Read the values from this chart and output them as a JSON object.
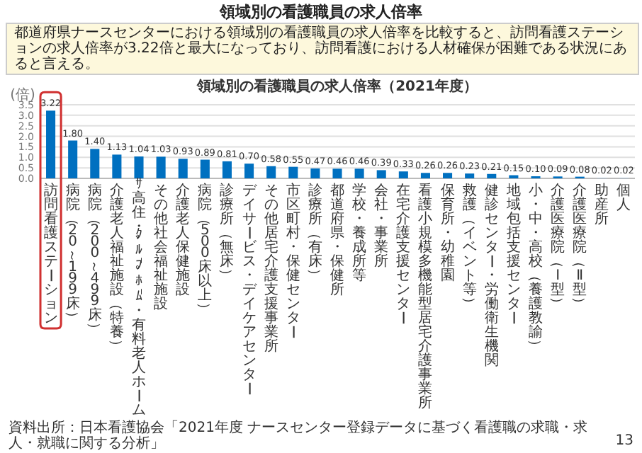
{
  "chart_data": {
    "type": "bar",
    "title": "領域別の看護職員の求人倍率",
    "subtitle": "領域別の看護職員の求人倍率（2021年度）",
    "ylabel": "(倍)",
    "annotations": [
      "都道府県ナースセンターにおける領域別の看護職員の求人倍率を比較すると、訪問看護ステーションの求人倍率が3.22倍と最大になっており、訪問看護における人材確保が困難である状況にあると言える。",
      "資料出所：日本看護協会「2021年度 ナースセンター登録データに基づく看護職の求職・求人・就職に関する分析」",
      "13"
    ],
    "categories": [
      "訪問看護ステーション",
      "病院（20～199床）",
      "病院（200～499床）",
      "介護老人福祉施設（特養）",
      "ｻ高住・ｸﾞﾙｰﾌﾟﾎｰﾑ・有料老人ホーム",
      "その他社会福祉施設",
      "介護老人保健施設",
      "病院（500床以上）",
      "診療所（無床）",
      "デイサービス・デイケアセンター",
      "その他居宅介護支援事業所",
      "市区町村・保健センター",
      "診療所（有床）",
      "都道府県・保健所",
      "学校・養成所等",
      "会社・事業所",
      "在宅介護支援センター",
      "看護小規模多機能型居宅介護事業所",
      "保育所・幼稚園",
      "救護（イベント等）",
      "健診センター・労働衛生機関",
      "地域包括支援センター",
      "小・中・高校（養護教諭）",
      "介護医療院（Ⅰ型）",
      "介護医療院（Ⅱ型）",
      "助産所",
      "個人"
    ],
    "values": [
      3.22,
      1.8,
      1.4,
      1.13,
      1.04,
      1.03,
      0.93,
      0.89,
      0.81,
      0.7,
      0.58,
      0.55,
      0.47,
      0.46,
      0.46,
      0.39,
      0.33,
      0.26,
      0.26,
      0.23,
      0.21,
      0.15,
      0.1,
      0.09,
      0.08,
      0.02,
      0.02
    ],
    "value_labels": [
      "3.22",
      "1.80",
      "1.40",
      "1.13",
      "1.04",
      "1.03",
      "0.93",
      "0.89",
      "0.81",
      "0.70",
      "0.58",
      "0.55",
      "0.47",
      "0.46",
      "0.46",
      "0.39",
      "0.33",
      "0.26",
      "0.26",
      "0.23",
      "0.21",
      "0.15",
      "0.10",
      "0.09",
      "0.08",
      "0.02",
      "0.02"
    ],
    "colors": [
      "#0070c0",
      "#0070c0",
      "#0070c0",
      "#0070c0",
      "#0070c0",
      "#0070c0",
      "#0070c0",
      "#0070c0",
      "#0070c0",
      "#0070c0",
      "#0070c0",
      "#0070c0",
      "#0070c0",
      "#0070c0",
      "#0070c0",
      "#0070c0",
      "#0070c0",
      "#0070c0",
      "#0070c0",
      "#0070c0",
      "#0070c0",
      "#0070c0",
      "#0070c0",
      "#0070c0",
      "#0070c0",
      "#9dc3e6",
      "#9dc3e6"
    ],
    "ylim": [
      0,
      3.5
    ],
    "yticks": [
      {
        "value": 0,
        "label": "0.0"
      },
      {
        "value": 0.5,
        "label": "0.5"
      },
      {
        "value": 1,
        "label": "1.0"
      },
      {
        "value": 1.5,
        "label": "1.5"
      },
      {
        "value": 2,
        "label": "2.0"
      },
      {
        "value": 2.5,
        "label": "2.5"
      },
      {
        "value": 3,
        "label": "3.0"
      },
      {
        "value": 3.5,
        "label": "3.5"
      }
    ],
    "grid": "y"
  }
}
